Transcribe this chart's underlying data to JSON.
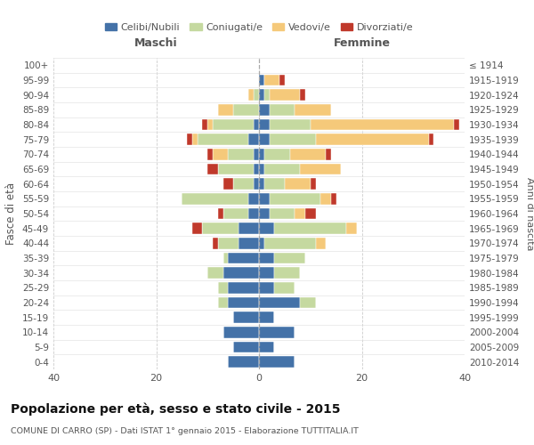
{
  "age_groups": [
    "100+",
    "95-99",
    "90-94",
    "85-89",
    "80-84",
    "75-79",
    "70-74",
    "65-69",
    "60-64",
    "55-59",
    "50-54",
    "45-49",
    "40-44",
    "35-39",
    "30-34",
    "25-29",
    "20-24",
    "15-19",
    "10-14",
    "5-9",
    "0-4"
  ],
  "birth_years": [
    "≤ 1914",
    "1915-1919",
    "1920-1924",
    "1925-1929",
    "1930-1934",
    "1935-1939",
    "1940-1944",
    "1945-1949",
    "1950-1954",
    "1955-1959",
    "1960-1964",
    "1965-1969",
    "1970-1974",
    "1975-1979",
    "1980-1984",
    "1985-1989",
    "1990-1994",
    "1995-1999",
    "2000-2004",
    "2005-2009",
    "2010-2014"
  ],
  "males": {
    "celibi": [
      0,
      0,
      0,
      0,
      1,
      2,
      1,
      1,
      1,
      2,
      2,
      4,
      4,
      6,
      7,
      6,
      6,
      5,
      7,
      5,
      6
    ],
    "coniugati": [
      0,
      0,
      1,
      5,
      8,
      10,
      5,
      7,
      4,
      13,
      5,
      7,
      4,
      1,
      3,
      2,
      2,
      0,
      0,
      0,
      0
    ],
    "vedovi": [
      0,
      0,
      1,
      3,
      1,
      1,
      3,
      0,
      0,
      0,
      0,
      0,
      0,
      0,
      0,
      0,
      0,
      0,
      0,
      0,
      0
    ],
    "divorziati": [
      0,
      0,
      0,
      0,
      1,
      1,
      1,
      2,
      2,
      0,
      1,
      2,
      1,
      0,
      0,
      0,
      0,
      0,
      0,
      0,
      0
    ]
  },
  "females": {
    "nubili": [
      0,
      1,
      1,
      2,
      2,
      2,
      1,
      1,
      1,
      2,
      2,
      3,
      1,
      3,
      3,
      3,
      8,
      3,
      7,
      3,
      7
    ],
    "coniugate": [
      0,
      0,
      1,
      5,
      8,
      9,
      5,
      7,
      4,
      10,
      5,
      14,
      10,
      6,
      5,
      4,
      3,
      0,
      0,
      0,
      0
    ],
    "vedove": [
      0,
      3,
      6,
      7,
      28,
      22,
      7,
      8,
      5,
      2,
      2,
      2,
      2,
      0,
      0,
      0,
      0,
      0,
      0,
      0,
      0
    ],
    "divorziate": [
      0,
      1,
      1,
      0,
      1,
      1,
      1,
      0,
      1,
      1,
      2,
      0,
      0,
      0,
      0,
      0,
      0,
      0,
      0,
      0,
      0
    ]
  },
  "color_celibi": "#4472a8",
  "color_coniugati": "#c5d9a0",
  "color_vedovi": "#f5c97a",
  "color_divorziati": "#c0392b",
  "xlim": 40,
  "title": "Popolazione per età, sesso e stato civile - 2015",
  "subtitle": "COMUNE DI CARRO (SP) - Dati ISTAT 1° gennaio 2015 - Elaborazione TUTTITALIA.IT",
  "ylabel_left": "Fasce di età",
  "ylabel_right": "Anni di nascita",
  "xlabel_left": "Maschi",
  "xlabel_right": "Femmine"
}
